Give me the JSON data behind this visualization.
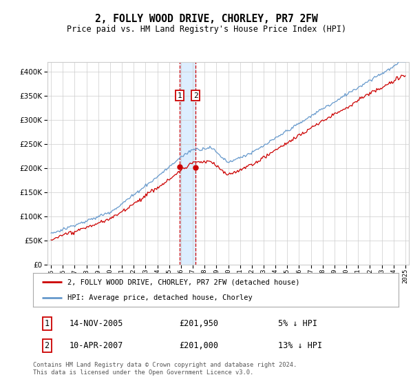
{
  "title": "2, FOLLY WOOD DRIVE, CHORLEY, PR7 2FW",
  "subtitle": "Price paid vs. HM Land Registry's House Price Index (HPI)",
  "red_label": "2, FOLLY WOOD DRIVE, CHORLEY, PR7 2FW (detached house)",
  "blue_label": "HPI: Average price, detached house, Chorley",
  "transaction1_date": "14-NOV-2005",
  "transaction1_price": 201950,
  "transaction1_hpi": "5% ↓ HPI",
  "transaction2_date": "10-APR-2007",
  "transaction2_price": 201000,
  "transaction2_hpi": "13% ↓ HPI",
  "footer": "Contains HM Land Registry data © Crown copyright and database right 2024.\nThis data is licensed under the Open Government Licence v3.0.",
  "ylim_min": 0,
  "ylim_max": 420000,
  "yticks": [
    0,
    50000,
    100000,
    150000,
    200000,
    250000,
    300000,
    350000,
    400000
  ],
  "background_color": "#ffffff",
  "grid_color": "#cccccc",
  "red_color": "#cc0000",
  "blue_color": "#6699cc",
  "highlight_color": "#ddeeff",
  "t1_year": 2005.875,
  "t2_year": 2007.25,
  "box1_label": "1",
  "box2_label": "2"
}
